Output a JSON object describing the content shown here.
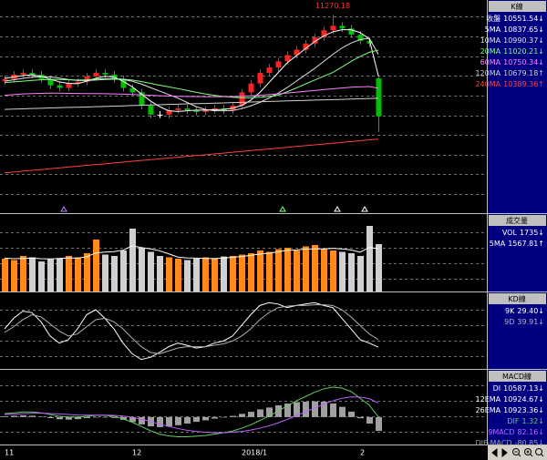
{
  "chart_data": [
    {
      "type": "candlestick",
      "title": "K線",
      "categories": [
        "11",
        null,
        null,
        null,
        null,
        null,
        null,
        null,
        null,
        null,
        null,
        null,
        null,
        null,
        "12",
        null,
        null,
        null,
        null,
        null,
        null,
        null,
        null,
        null,
        null,
        null,
        "2018/1",
        null,
        null,
        null,
        null,
        null,
        null,
        null,
        null,
        null,
        null,
        null,
        null,
        "2",
        null,
        null
      ],
      "open": [
        10800,
        10815,
        10847,
        10859,
        10847,
        10815,
        10771,
        10752,
        10784,
        10796,
        10834,
        10859,
        10847,
        10815,
        10752,
        10721,
        10626,
        10563,
        10563,
        10595,
        10607,
        10595,
        10582,
        10595,
        10607,
        10595,
        10626,
        10721,
        10784,
        10859,
        10897,
        10941,
        10985,
        11023,
        11067,
        11111,
        11161,
        11193,
        11174,
        11130,
        11086,
        10820
      ],
      "high": [
        10840,
        10872,
        10884,
        10884,
        10872,
        10840,
        10796,
        10809,
        10821,
        10859,
        10884,
        10884,
        10872,
        10840,
        10777,
        10746,
        10651,
        10588,
        10620,
        10632,
        10632,
        10620,
        10620,
        10632,
        10632,
        10651,
        10746,
        10809,
        10884,
        10922,
        10966,
        11010,
        11048,
        11092,
        11136,
        11186,
        11270.18,
        11218,
        11199,
        11155,
        11111,
        10845
      ],
      "low": [
        10775,
        10790,
        10822,
        10822,
        10790,
        10746,
        10727,
        10727,
        10759,
        10771,
        10809,
        10822,
        10790,
        10727,
        10696,
        10601,
        10538,
        10538,
        10538,
        10570,
        10570,
        10557,
        10557,
        10570,
        10570,
        10570,
        10601,
        10696,
        10759,
        10834,
        10872,
        10916,
        10960,
        10998,
        11042,
        11086,
        11136,
        11149,
        11105,
        11061,
        11042,
        10440
      ],
      "close": [
        10815,
        10847,
        10859,
        10847,
        10815,
        10771,
        10752,
        10784,
        10796,
        10834,
        10859,
        10847,
        10815,
        10752,
        10721,
        10626,
        10563,
        10563,
        10595,
        10607,
        10595,
        10582,
        10595,
        10607,
        10595,
        10626,
        10721,
        10784,
        10859,
        10897,
        10941,
        10985,
        11023,
        11067,
        11111,
        11161,
        11193,
        11174,
        11130,
        11086,
        11067,
        10551.54
      ],
      "close_name": "收盤",
      "close_trend": "↓",
      "close_color": "#ffffff",
      "up_color": "#ff2020",
      "down_color": "#00c000",
      "flat_color": "#ffffff",
      "ylim": [
        9890,
        11350
      ],
      "series": [
        {
          "name": "5MA",
          "color": "#ffffff",
          "trend": "↓",
          "values": [
            10820,
            10830,
            10840,
            10845,
            10835,
            10815,
            10795,
            10785,
            10782,
            10800,
            10820,
            10835,
            10830,
            10800,
            10760,
            10710,
            10660,
            10620,
            10590,
            10585,
            10590,
            10595,
            10595,
            10598,
            10600,
            10608,
            10628,
            10665,
            10720,
            10790,
            10860,
            10930,
            10980,
            11030,
            11080,
            11120,
            11150,
            11165,
            11165,
            11145,
            11100,
            10837.65
          ]
        },
        {
          "name": "10MA",
          "color": "#e0e0e0",
          "trend": "↓",
          "values": [
            10800,
            10810,
            10820,
            10828,
            10832,
            10830,
            10822,
            10812,
            10805,
            10805,
            10808,
            10812,
            10815,
            10812,
            10800,
            10780,
            10755,
            10730,
            10705,
            10680,
            10650,
            10620,
            10600,
            10590,
            10590,
            10592,
            10605,
            10625,
            10650,
            10680,
            10715,
            10755,
            10800,
            10845,
            10890,
            10940,
            10990,
            11035,
            11070,
            11095,
            11105,
            10990.37
          ]
        },
        {
          "name": "20MA",
          "color": "#80ff80",
          "trend": "↓",
          "values": [
            10790,
            10795,
            10800,
            10806,
            10810,
            10812,
            10812,
            10810,
            10808,
            10810,
            10815,
            10818,
            10818,
            10815,
            10808,
            10798,
            10785,
            10772,
            10760,
            10748,
            10735,
            10722,
            10710,
            10700,
            10692,
            10686,
            10682,
            10682,
            10686,
            10692,
            10700,
            10725,
            10752,
            10780,
            10808,
            10835,
            10862,
            10900,
            10940,
            10975,
            11005,
            11020.21
          ]
        },
        {
          "name": "60MA",
          "color": "#ff80ff",
          "trend": "↓",
          "values": [
            10700,
            10705,
            10710,
            10712,
            10714,
            10715,
            10715,
            10714,
            10713,
            10712,
            10712,
            10711,
            10710,
            10708,
            10706,
            10703,
            10700,
            10697,
            10695,
            10693,
            10692,
            10691,
            10690,
            10690,
            10690,
            10691,
            10693,
            10696,
            10700,
            10705,
            10710,
            10716,
            10722,
            10728,
            10734,
            10740,
            10746,
            10752,
            10757,
            10760,
            10762,
            10750.34
          ]
        },
        {
          "name": "120MA",
          "color": "#d0d0d0",
          "trend": "↑",
          "values": [
            10600,
            10602,
            10604,
            10606,
            10608,
            10610,
            10612,
            10614,
            10615,
            10617,
            10619,
            10621,
            10623,
            10625,
            10627,
            10629,
            10631,
            10633,
            10635,
            10637,
            10639,
            10641,
            10642,
            10644,
            10646,
            10648,
            10650,
            10652,
            10654,
            10656,
            10658,
            10660,
            10662,
            10664,
            10666,
            10668,
            10669,
            10671,
            10673,
            10675,
            10677,
            10679.18
          ]
        },
        {
          "name": "240MA",
          "color": "#ff4040",
          "trend": "↑",
          "values": [
            10150,
            10156,
            10162,
            10168,
            10173,
            10179,
            10185,
            10191,
            10197,
            10203,
            10208,
            10214,
            10220,
            10226,
            10232,
            10238,
            10243,
            10249,
            10255,
            10261,
            10267,
            10273,
            10278,
            10284,
            10290,
            10296,
            10302,
            10308,
            10314,
            10319,
            10325,
            10331,
            10337,
            10343,
            10349,
            10354,
            10360,
            10366,
            10372,
            10378,
            10384,
            10389.36
          ]
        }
      ]
    },
    {
      "type": "bar",
      "title": "成交量",
      "ylim": [
        0,
        2600
      ],
      "series": [
        {
          "name": "VOL",
          "trend": "↓",
          "legend_color": "#ffffff",
          "color_up": "#ff8c1a",
          "color_down": "#d0d0d0",
          "values": [
            1200,
            1150,
            1300,
            1250,
            1100,
            1180,
            1220,
            1300,
            1250,
            1400,
            1900,
            1350,
            1300,
            1500,
            2300,
            1600,
            1450,
            1300,
            1250,
            1200,
            1150,
            1200,
            1250,
            1220,
            1280,
            1300,
            1350,
            1400,
            1500,
            1450,
            1550,
            1600,
            1500,
            1650,
            1700,
            1550,
            1500,
            1450,
            1400,
            1300,
            2400,
            1735
          ]
        },
        {
          "name": "5MA",
          "kind": "line",
          "trend": "↑",
          "color": "#ffffff",
          "values": [
            1220,
            1200,
            1210,
            1220,
            1200,
            1190,
            1210,
            1230,
            1220,
            1270,
            1410,
            1440,
            1460,
            1510,
            1670,
            1610,
            1560,
            1490,
            1380,
            1260,
            1230,
            1220,
            1210,
            1205,
            1220,
            1250,
            1280,
            1320,
            1370,
            1400,
            1450,
            1510,
            1520,
            1550,
            1560,
            1560,
            1580,
            1560,
            1520,
            1440,
            1610,
            1567.81
          ]
        }
      ]
    },
    {
      "type": "line",
      "title": "KD線",
      "ylim": [
        0,
        100
      ],
      "series": [
        {
          "name": "9K",
          "color": "#ffffff",
          "trend": "↓",
          "value_label": "29.40",
          "values": [
            55,
            70,
            80,
            78,
            65,
            45,
            35,
            40,
            55,
            75,
            82,
            70,
            55,
            35,
            20,
            12,
            15,
            22,
            30,
            35,
            32,
            28,
            30,
            35,
            38,
            45,
            60,
            75,
            88,
            92,
            90,
            85,
            88,
            90,
            92,
            88,
            85,
            70,
            55,
            40,
            35,
            29.4
          ]
        },
        {
          "name": "9D",
          "color": "#b0b0b0",
          "trend": "↓",
          "values": [
            50,
            58,
            68,
            75,
            72,
            62,
            52,
            45,
            48,
            58,
            68,
            70,
            65,
            55,
            42,
            30,
            22,
            20,
            24,
            28,
            30,
            30,
            30,
            32,
            34,
            38,
            45,
            55,
            68,
            78,
            85,
            87,
            88,
            88,
            89,
            89,
            88,
            82,
            72,
            60,
            48,
            39.91
          ]
        }
      ]
    },
    {
      "type": "bar",
      "title": "MACD線",
      "ylim": [
        -150,
        250
      ],
      "indicators": [
        {
          "name": "DI",
          "value": "10587.13",
          "trend": "↓",
          "color": "#ffffff"
        },
        {
          "name": "12EMA",
          "value": "10924.67",
          "trend": "↓",
          "color": "#ffffff"
        },
        {
          "name": "26EMA",
          "value": "10923.36",
          "trend": "↓",
          "color": "#ffffff"
        }
      ],
      "series": [
        {
          "name": "DIF",
          "kind": "line",
          "color": "#60d060",
          "trend": "↓",
          "values": [
            20,
            25,
            30,
            30,
            25,
            15,
            5,
            0,
            0,
            5,
            10,
            10,
            5,
            -10,
            -30,
            -55,
            -80,
            -100,
            -110,
            -115,
            -115,
            -112,
            -108,
            -100,
            -92,
            -82,
            -65,
            -45,
            -20,
            5,
            35,
            65,
            95,
            120,
            145,
            165,
            175,
            170,
            150,
            110,
            70,
            1.32
          ]
        },
        {
          "name": "9MACD",
          "kind": "line",
          "color": "#c060ff",
          "trend": "↓",
          "values": [
            15,
            17,
            20,
            22,
            23,
            21,
            18,
            15,
            12,
            11,
            11,
            11,
            10,
            6,
            -1,
            -12,
            -26,
            -41,
            -55,
            -67,
            -77,
            -84,
            -89,
            -91,
            -91,
            -89,
            -84,
            -76,
            -65,
            -51,
            -34,
            -14,
            8,
            30,
            53,
            75,
            95,
            110,
            118,
            117,
            108,
            82.16
          ]
        },
        {
          "name": "DIF-MACD",
          "color": "#a0a0a0",
          "trend": "↓",
          "values": [
            5,
            8,
            10,
            8,
            2,
            -6,
            -13,
            -15,
            -12,
            -6,
            -1,
            -1,
            -5,
            -16,
            -29,
            -43,
            -54,
            -59,
            -55,
            -48,
            -38,
            -28,
            -19,
            -9,
            -1,
            7,
            19,
            31,
            45,
            56,
            69,
            79,
            87,
            90,
            92,
            90,
            80,
            60,
            32,
            -7,
            -38,
            -80.85
          ]
        }
      ]
    }
  ]
}
